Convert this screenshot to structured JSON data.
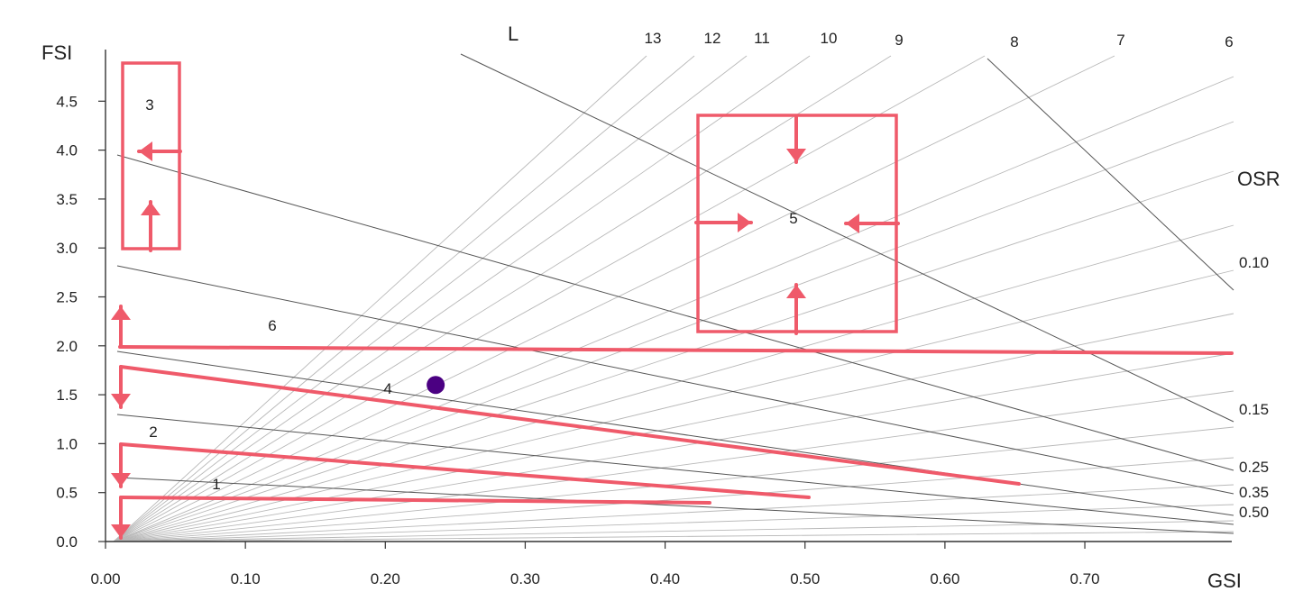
{
  "chart_data": {
    "type": "scatter",
    "xlabel": "GSI",
    "ylabel": "FSI",
    "xlim": [
      0,
      0.8
    ],
    "ylim": [
      0,
      5.0
    ],
    "grid": false,
    "x_ticks": [
      "0.00",
      "0.10",
      "0.20",
      "0.30",
      "0.40",
      "0.50",
      "0.60",
      "0.70"
    ],
    "y_ticks": [
      "0.0",
      "0.5",
      "1.0",
      "1.5",
      "2.0",
      "2.5",
      "3.0",
      "3.5",
      "4.0",
      "4.5"
    ],
    "L_title": "L",
    "L_labels": [
      "13",
      "12",
      "11",
      "10",
      "9",
      "8",
      "7",
      "6"
    ],
    "OSR_title": "OSR",
    "OSR_labels": [
      "0.10",
      "0.15",
      "0.25",
      "0.35",
      "0.50"
    ],
    "zone_labels": [
      "1",
      "2",
      "3",
      "4",
      "5",
      "6"
    ],
    "points": [
      {
        "x": 0.236,
        "y": 1.6
      }
    ],
    "colors": {
      "highlight": "#ef5a6a",
      "point": "#4b0082",
      "line": "#555555",
      "grid": "#b8b8b8"
    }
  }
}
